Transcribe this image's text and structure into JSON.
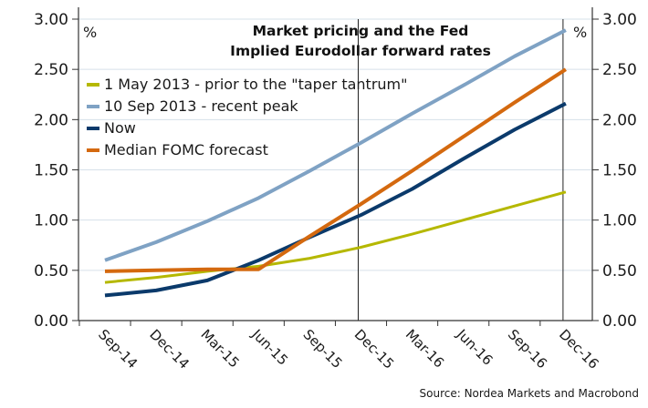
{
  "chart_data": {
    "type": "line",
    "title": "Market pricing and the Fed",
    "subtitle": "Implied Eurodollar forward rates",
    "xlabel": "",
    "ylabel": "%",
    "ylabel_right": "%",
    "ylim": [
      0,
      3
    ],
    "y_ticks": [
      "0.00",
      "0.50",
      "1.00",
      "1.50",
      "2.00",
      "2.50",
      "3.00"
    ],
    "y_tick_values": [
      0,
      0.5,
      1,
      1.5,
      2,
      2.5,
      3
    ],
    "grid": true,
    "legend_position": "top-left",
    "categories": [
      "Sep-14",
      "Dec-14",
      "Mar-15",
      "Jun-15",
      "Sep-15",
      "Dec-15",
      "Mar-16",
      "Jun-16",
      "Sep-16",
      "Dec-16"
    ],
    "vertical_markers": [
      "Dec-15",
      "Dec-16"
    ],
    "series": [
      {
        "name": "1 May 2013 - prior to the \"taper tantrum\"",
        "color": "#b5b800",
        "values": [
          0.38,
          0.43,
          0.49,
          0.54,
          0.62,
          0.73,
          0.86,
          1.0,
          1.14,
          1.28
        ]
      },
      {
        "name": "10 Sep 2013 - recent peak",
        "color": "#7fa2c4",
        "values": [
          0.6,
          0.78,
          0.99,
          1.22,
          1.49,
          1.77,
          2.06,
          2.34,
          2.63,
          2.89
        ]
      },
      {
        "name": "Now",
        "color": "#0b3a6b",
        "values": [
          0.25,
          0.3,
          0.4,
          0.6,
          0.83,
          1.05,
          1.31,
          1.61,
          1.9,
          2.16
        ]
      },
      {
        "name": "Median FOMC forecast",
        "color": "#d4690f",
        "values": [
          0.49,
          0.5,
          0.51,
          0.51,
          0.84,
          1.16,
          1.49,
          1.83,
          2.17,
          2.5
        ]
      }
    ],
    "source": "Source: Nordea Markets and Macrobond"
  }
}
